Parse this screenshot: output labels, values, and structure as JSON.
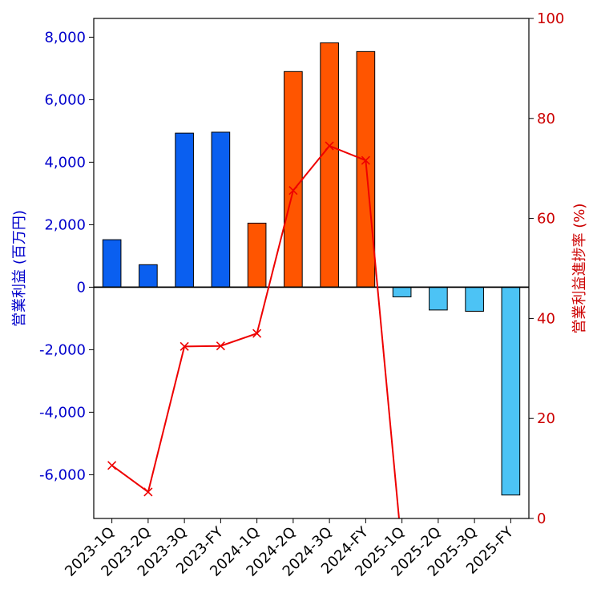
{
  "chart_data": {
    "type": "bar",
    "categories": [
      "2023-1Q",
      "2023-2Q",
      "2023-3Q",
      "2023-FY",
      "2024-1Q",
      "2024-2Q",
      "2024-3Q",
      "2024-FY",
      "2025-1Q",
      "2025-2Q",
      "2025-3Q",
      "2025-FY"
    ],
    "bars": {
      "values": [
        1520,
        720,
        4930,
        4960,
        2050,
        6900,
        7820,
        7540,
        -310,
        -730,
        -770,
        -6650
      ],
      "colors": [
        "#0a5ff0",
        "#0a5ff0",
        "#0a5ff0",
        "#0a5ff0",
        "#ff5500",
        "#ff5500",
        "#ff5500",
        "#ff5500",
        "#4cc3f5",
        "#4cc3f5",
        "#4cc3f5",
        "#4cc3f5"
      ]
    },
    "line": {
      "values": [
        10.6,
        5.3,
        34.4,
        34.5,
        37.0,
        65.6,
        74.5,
        71.6,
        -6.3
      ],
      "color": "#ee0000",
      "marker": "x"
    },
    "ylabel": "営業利益 (百万円)",
    "y2label": "営業利益進捗率 (%)",
    "ylim": [
      -7400,
      8600
    ],
    "y2lim": [
      0,
      100
    ],
    "yticks": [
      -6000,
      -4000,
      -2000,
      0,
      2000,
      4000,
      6000,
      8000
    ],
    "yticks_text": [
      "-6,000",
      "-4,000",
      "-2,000",
      "0",
      "2,000",
      "4,000",
      "6,000",
      "8,000"
    ],
    "y2ticks": [
      0,
      20,
      40,
      60,
      80,
      100
    ],
    "y2ticks_text": [
      "0",
      "20",
      "40",
      "60",
      "80",
      "100"
    ],
    "colors": {
      "left_axis": "#0000cc",
      "right_axis": "#cc0000"
    }
  }
}
